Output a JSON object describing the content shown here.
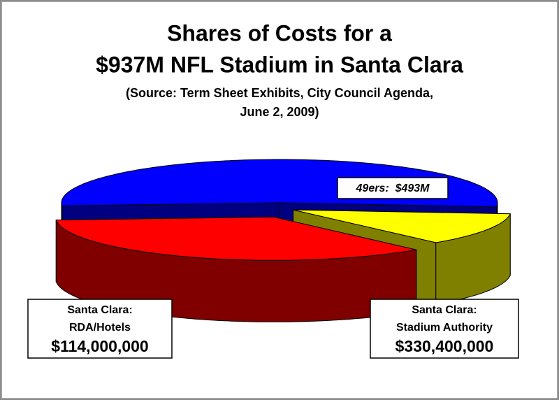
{
  "chart_data": {
    "type": "pie",
    "title": [
      "Shares of Costs for a",
      "$937M NFL Stadium in Santa Clara"
    ],
    "subtitle": [
      "(Source:  Term Sheet Exhibits, City Council Agenda,",
      "June 2, 2009)"
    ],
    "categories": [
      [
        "49ers:"
      ],
      [
        "Santa Clara:",
        "RDA/Hotels"
      ],
      [
        "Santa Clara:",
        "Stadium Authority"
      ]
    ],
    "values": [
      493000000,
      114000000,
      330400000
    ],
    "value_labels": [
      "$493M",
      "$114,000,000",
      "$330,400,000"
    ],
    "colors": [
      "#0000ff",
      "#ffff00",
      "#ff0000"
    ],
    "explode": [
      0,
      1,
      1
    ],
    "three_d": true
  }
}
